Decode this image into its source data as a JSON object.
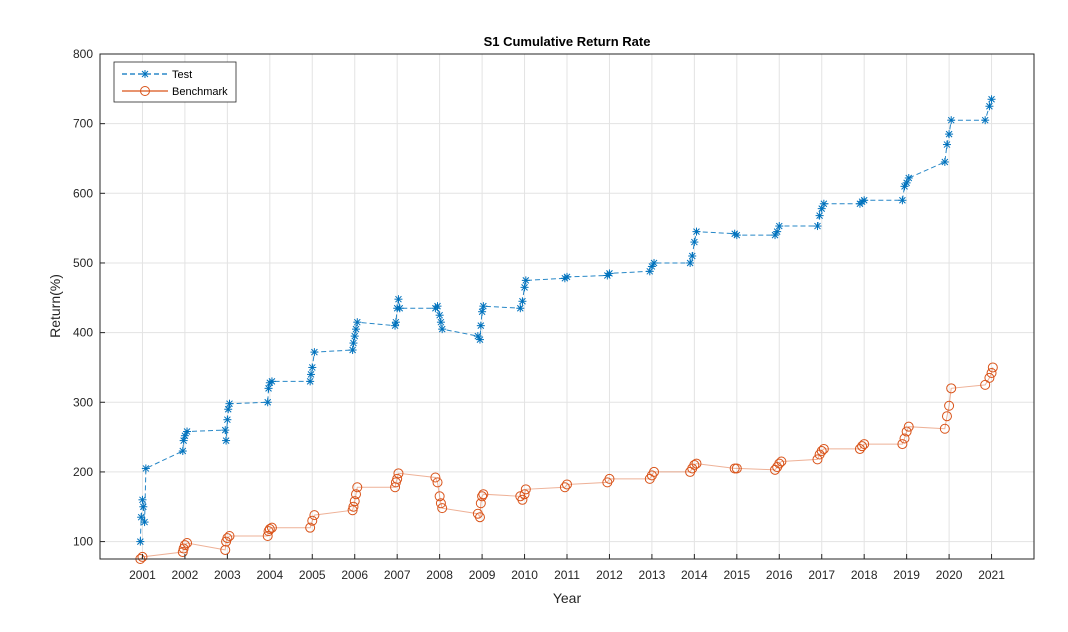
{
  "chart_data": {
    "type": "line",
    "title": "S1 Cumulative Return Rate",
    "xlabel": "Year",
    "ylabel": "Return(%)",
    "xlim": [
      2000,
      2022
    ],
    "ylim": [
      75,
      800
    ],
    "x_ticks": [
      "2001",
      "2002",
      "2003",
      "2004",
      "2005",
      "2006",
      "2007",
      "2008",
      "2009",
      "2010",
      "2011",
      "2012",
      "2013",
      "2014",
      "2015",
      "2016",
      "2017",
      "2018",
      "2019",
      "2020",
      "2021"
    ],
    "y_ticks": [
      "100",
      "200",
      "300",
      "400",
      "500",
      "600",
      "700",
      "800"
    ],
    "grid": true,
    "legend_position": "top-left",
    "series": [
      {
        "name": "Test",
        "color": "#0072BD",
        "line_style": "dashed",
        "marker": "asterisk",
        "points": [
          [
            2000.95,
            100
          ],
          [
            2000.97,
            135
          ],
          [
            2001.0,
            160
          ],
          [
            2001.02,
            150
          ],
          [
            2001.05,
            128
          ],
          [
            2001.08,
            205
          ],
          [
            2001.95,
            230
          ],
          [
            2001.97,
            245
          ],
          [
            2002.0,
            252
          ],
          [
            2002.05,
            258
          ],
          [
            2002.95,
            260
          ],
          [
            2002.97,
            245
          ],
          [
            2003.0,
            275
          ],
          [
            2003.02,
            290
          ],
          [
            2003.05,
            298
          ],
          [
            2003.95,
            300
          ],
          [
            2003.97,
            320
          ],
          [
            2004.0,
            328
          ],
          [
            2004.05,
            330
          ],
          [
            2004.95,
            330
          ],
          [
            2004.97,
            340
          ],
          [
            2005.0,
            350
          ],
          [
            2005.05,
            372
          ],
          [
            2005.95,
            375
          ],
          [
            2005.97,
            385
          ],
          [
            2006.0,
            395
          ],
          [
            2006.03,
            405
          ],
          [
            2006.06,
            415
          ],
          [
            2006.95,
            410
          ],
          [
            2006.97,
            415
          ],
          [
            2007.0,
            435
          ],
          [
            2007.03,
            448
          ],
          [
            2007.06,
            435
          ],
          [
            2007.9,
            435
          ],
          [
            2007.95,
            438
          ],
          [
            2008.0,
            425
          ],
          [
            2008.03,
            415
          ],
          [
            2008.06,
            405
          ],
          [
            2008.9,
            395
          ],
          [
            2008.95,
            390
          ],
          [
            2008.97,
            410
          ],
          [
            2009.0,
            430
          ],
          [
            2009.03,
            438
          ],
          [
            2009.9,
            435
          ],
          [
            2009.95,
            445
          ],
          [
            2010.0,
            465
          ],
          [
            2010.03,
            475
          ],
          [
            2010.95,
            478
          ],
          [
            2011.0,
            480
          ],
          [
            2011.95,
            482
          ],
          [
            2012.0,
            485
          ],
          [
            2012.95,
            488
          ],
          [
            2013.0,
            495
          ],
          [
            2013.05,
            500
          ],
          [
            2013.9,
            500
          ],
          [
            2013.95,
            510
          ],
          [
            2014.0,
            530
          ],
          [
            2014.05,
            545
          ],
          [
            2014.95,
            542
          ],
          [
            2015.0,
            540
          ],
          [
            2015.9,
            540
          ],
          [
            2015.95,
            545
          ],
          [
            2016.0,
            553
          ],
          [
            2016.9,
            553
          ],
          [
            2016.95,
            568
          ],
          [
            2017.0,
            578
          ],
          [
            2017.05,
            585
          ],
          [
            2017.9,
            585
          ],
          [
            2017.95,
            588
          ],
          [
            2018.0,
            590
          ],
          [
            2018.9,
            590
          ],
          [
            2018.95,
            610
          ],
          [
            2019.0,
            615
          ],
          [
            2019.05,
            622
          ],
          [
            2019.9,
            645
          ],
          [
            2019.95,
            670
          ],
          [
            2020.0,
            685
          ],
          [
            2020.05,
            705
          ],
          [
            2020.85,
            705
          ],
          [
            2020.95,
            725
          ],
          [
            2021.0,
            735
          ]
        ]
      },
      {
        "name": "Benchmark",
        "color": "#D95319",
        "line_style": "solid",
        "marker": "circle",
        "points": [
          [
            2000.95,
            75
          ],
          [
            2001.0,
            78
          ],
          [
            2001.95,
            85
          ],
          [
            2001.97,
            90
          ],
          [
            2002.0,
            95
          ],
          [
            2002.05,
            98
          ],
          [
            2002.95,
            88
          ],
          [
            2002.97,
            100
          ],
          [
            2003.0,
            105
          ],
          [
            2003.05,
            108
          ],
          [
            2003.95,
            108
          ],
          [
            2003.97,
            115
          ],
          [
            2004.0,
            118
          ],
          [
            2004.05,
            120
          ],
          [
            2004.95,
            120
          ],
          [
            2005.0,
            130
          ],
          [
            2005.05,
            138
          ],
          [
            2005.95,
            145
          ],
          [
            2005.97,
            150
          ],
          [
            2006.0,
            158
          ],
          [
            2006.03,
            168
          ],
          [
            2006.06,
            178
          ],
          [
            2006.95,
            178
          ],
          [
            2006.97,
            185
          ],
          [
            2007.0,
            190
          ],
          [
            2007.03,
            198
          ],
          [
            2007.9,
            192
          ],
          [
            2007.95,
            185
          ],
          [
            2008.0,
            165
          ],
          [
            2008.03,
            155
          ],
          [
            2008.06,
            148
          ],
          [
            2008.9,
            140
          ],
          [
            2008.95,
            135
          ],
          [
            2008.97,
            155
          ],
          [
            2009.0,
            165
          ],
          [
            2009.03,
            168
          ],
          [
            2009.9,
            165
          ],
          [
            2009.95,
            160
          ],
          [
            2010.0,
            168
          ],
          [
            2010.03,
            175
          ],
          [
            2010.95,
            178
          ],
          [
            2011.0,
            182
          ],
          [
            2011.95,
            185
          ],
          [
            2012.0,
            190
          ],
          [
            2012.95,
            190
          ],
          [
            2013.0,
            195
          ],
          [
            2013.05,
            200
          ],
          [
            2013.9,
            200
          ],
          [
            2013.95,
            205
          ],
          [
            2014.0,
            210
          ],
          [
            2014.05,
            212
          ],
          [
            2014.95,
            205
          ],
          [
            2015.0,
            205
          ],
          [
            2015.9,
            203
          ],
          [
            2015.95,
            207
          ],
          [
            2016.0,
            212
          ],
          [
            2016.05,
            215
          ],
          [
            2016.9,
            218
          ],
          [
            2016.95,
            225
          ],
          [
            2017.0,
            230
          ],
          [
            2017.05,
            233
          ],
          [
            2017.9,
            233
          ],
          [
            2017.95,
            237
          ],
          [
            2018.0,
            240
          ],
          [
            2018.9,
            240
          ],
          [
            2018.95,
            248
          ],
          [
            2019.0,
            258
          ],
          [
            2019.05,
            265
          ],
          [
            2019.9,
            262
          ],
          [
            2019.95,
            280
          ],
          [
            2020.0,
            295
          ],
          [
            2020.05,
            320
          ],
          [
            2020.85,
            325
          ],
          [
            2020.95,
            335
          ],
          [
            2021.0,
            342
          ],
          [
            2021.03,
            350
          ]
        ]
      }
    ]
  }
}
